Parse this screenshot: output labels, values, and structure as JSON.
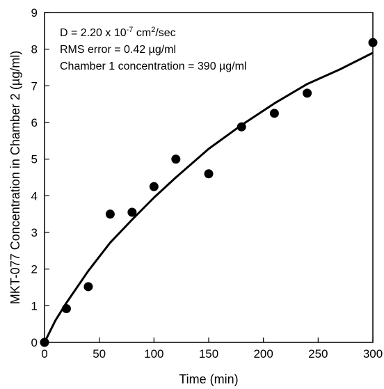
{
  "chart_data": {
    "type": "scatter",
    "title": "",
    "xlabel": "Time (min)",
    "ylabel": "MKT-077 Concentration in Chamber 2 (µg/ml)",
    "xlim": [
      0,
      300
    ],
    "ylim": [
      0,
      9
    ],
    "xticks": [
      0,
      50,
      100,
      150,
      200,
      250,
      300
    ],
    "yticks": [
      0,
      1,
      2,
      3,
      4,
      5,
      6,
      7,
      8,
      9
    ],
    "grid": false,
    "legend": "none",
    "annotations": {
      "line1_prefix": "D = 2.20 x 10",
      "line1_exp": "-7",
      "line1_mid": " cm",
      "line1_exp2": "2",
      "line1_suffix": "/sec",
      "line2": "RMS error = 0.42 µg/ml",
      "line3": "Chamber 1 concentration = 390 µg/ml"
    },
    "series": [
      {
        "kind": "points",
        "x": [
          0,
          20,
          40,
          60,
          80,
          100,
          120,
          150,
          180,
          210,
          240,
          300
        ],
        "y": [
          0.0,
          0.92,
          1.52,
          3.5,
          3.55,
          4.25,
          5.0,
          4.6,
          5.88,
          6.25,
          6.8,
          8.18
        ]
      },
      {
        "kind": "fit-line",
        "x": [
          0,
          10,
          20,
          40,
          60,
          80,
          100,
          120,
          150,
          180,
          210,
          240,
          270,
          300
        ],
        "y": [
          0.0,
          0.6,
          1.08,
          1.95,
          2.72,
          3.35,
          3.95,
          4.5,
          5.28,
          5.93,
          6.52,
          7.05,
          7.45,
          7.9
        ]
      }
    ],
    "colors": {
      "marker": "#000000",
      "line": "#000000",
      "axis": "#000000"
    }
  }
}
